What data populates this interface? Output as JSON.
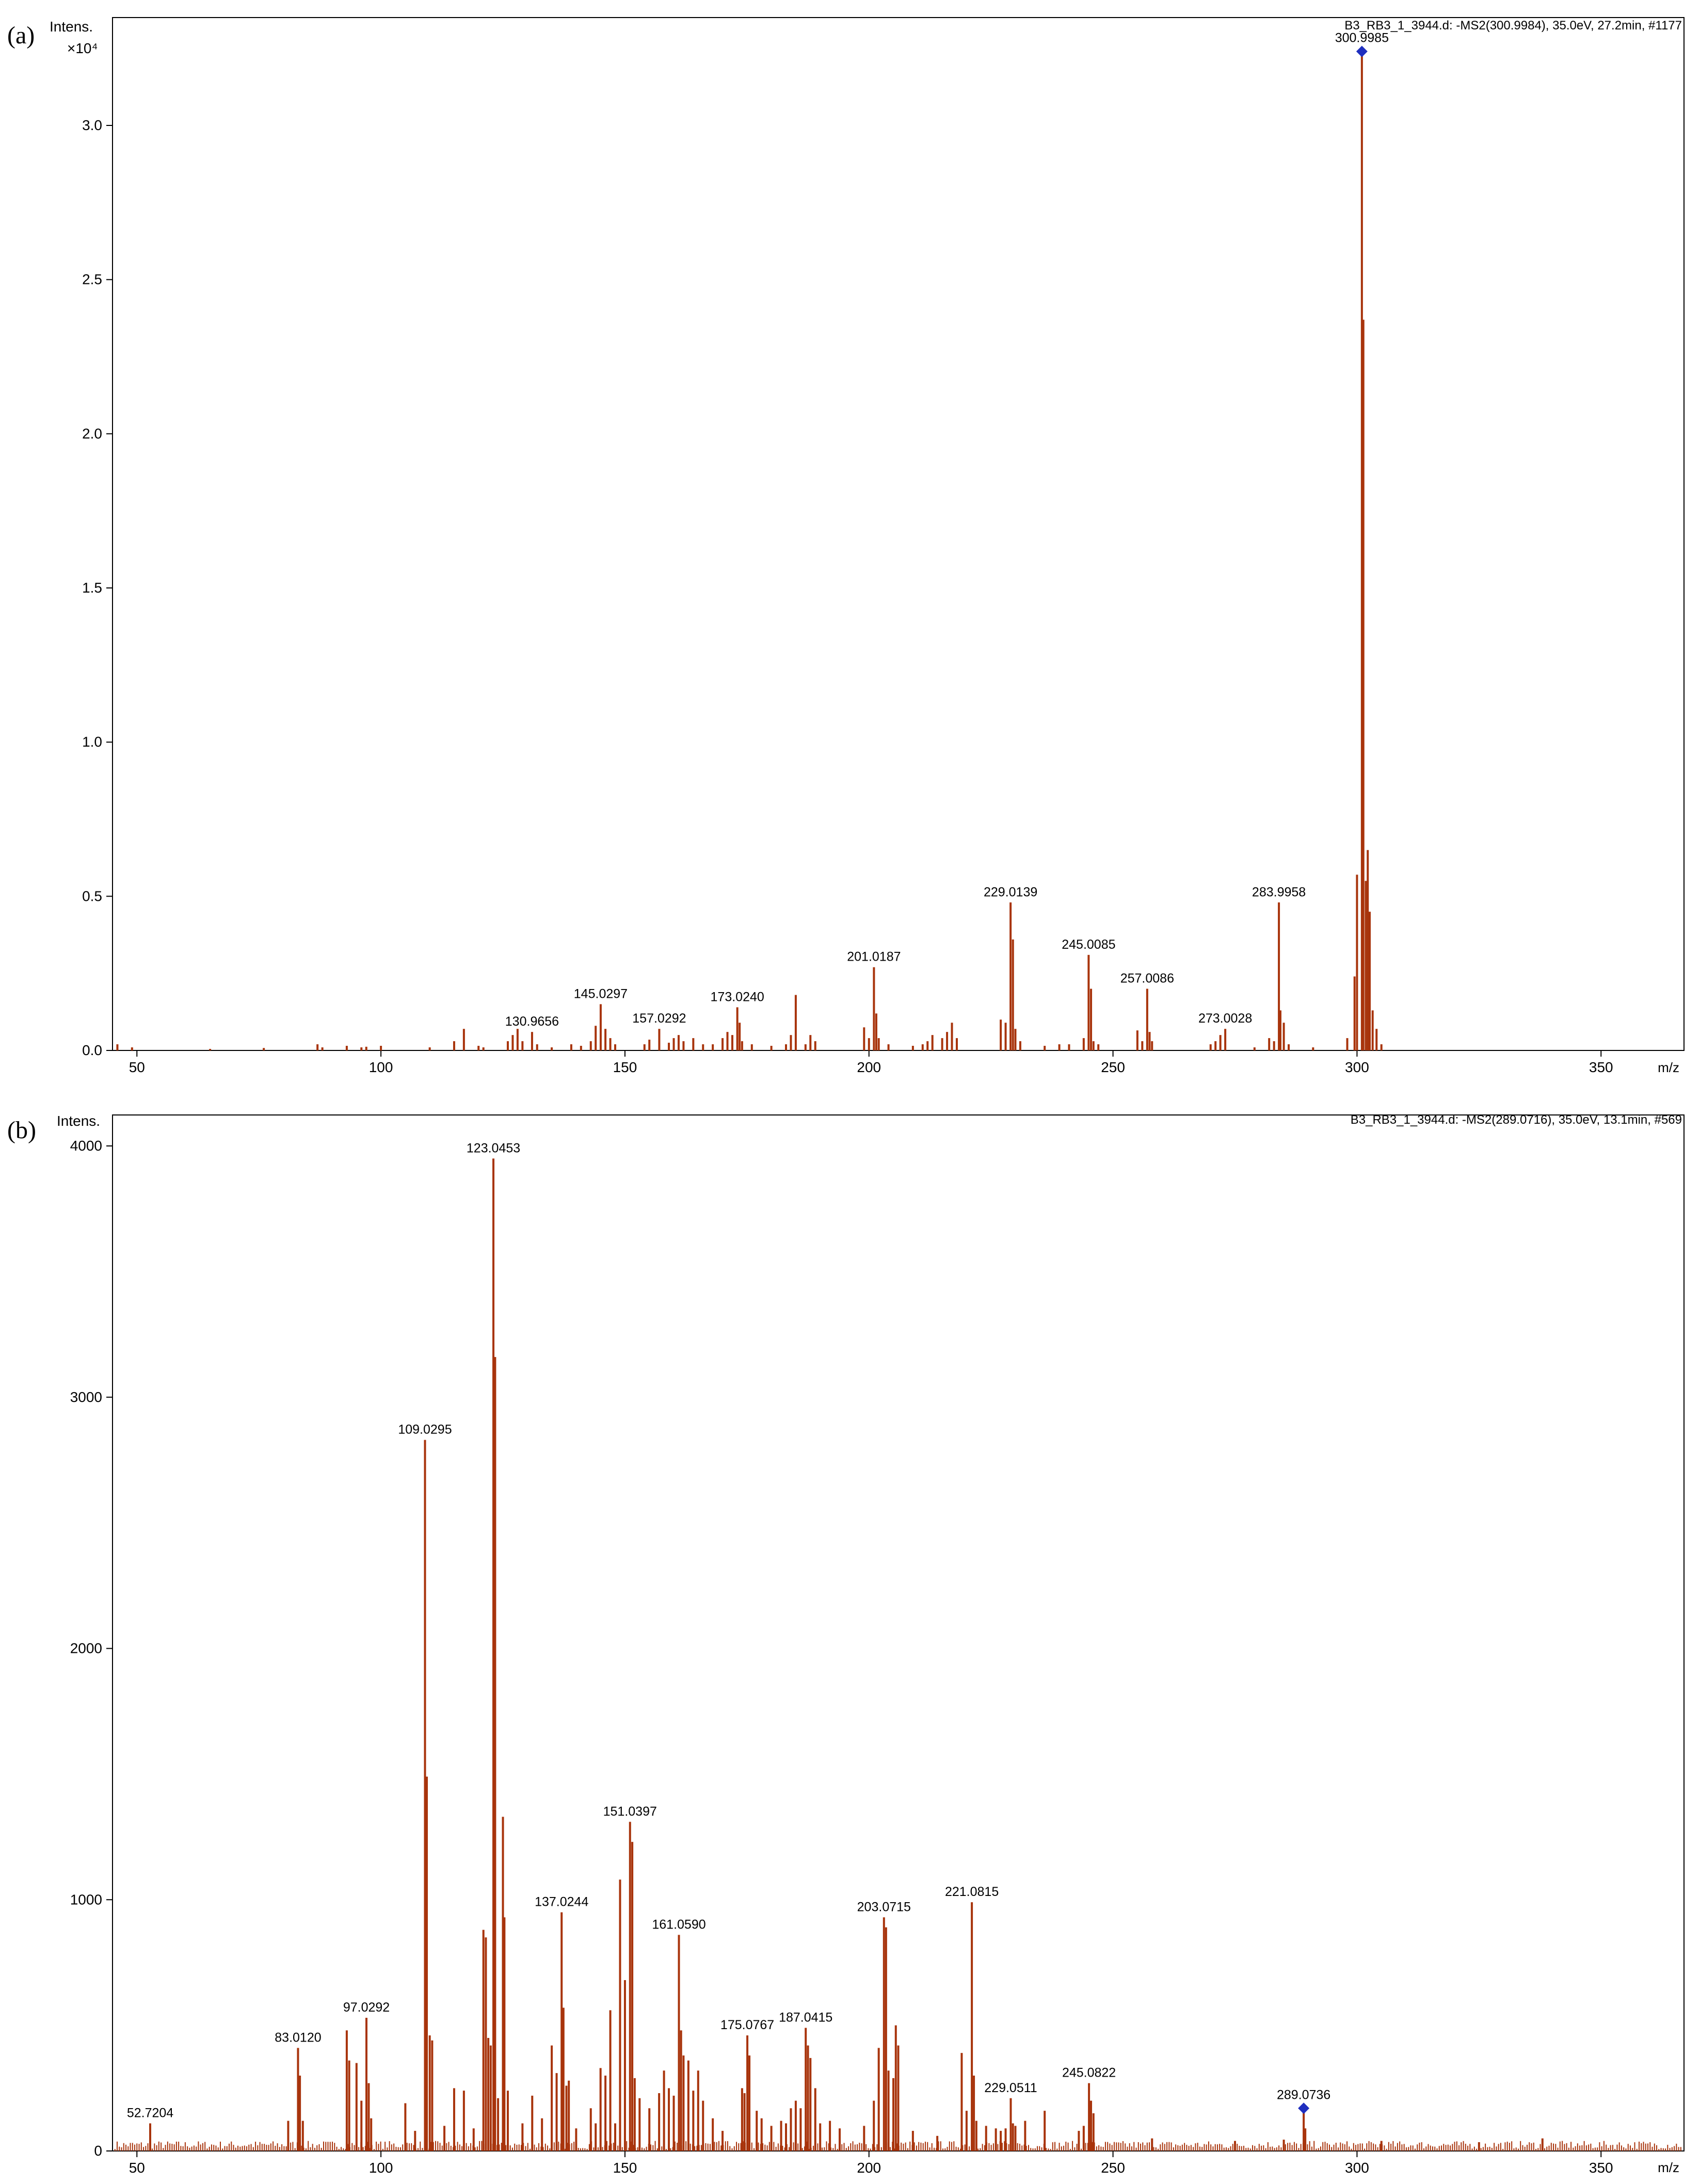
{
  "panels": [
    {
      "label": "(a)",
      "ylabel": "Intens.",
      "yscale": "×10⁴",
      "header": "B3_RB3_1_3944.d: -MS2(300.9984), 35.0eV, 27.2min, #1177",
      "xlabel": "m/z"
    },
    {
      "label": "(b)",
      "ylabel": "Intens.",
      "yscale": "",
      "header": "B3_RB3_1_3944.d: -MS2(289.0716), 35.0eV, 13.1min, #569",
      "xlabel": "m/z"
    }
  ],
  "chart_data": [
    {
      "type": "bar",
      "title": "B3_RB3_1_3944.d: -MS2(300.9984), 35.0eV, 27.2min, #1177",
      "xlabel": "m/z",
      "ylabel": "Intens. ×10⁴",
      "xlim": [
        45,
        367
      ],
      "ylim": [
        0,
        3.4
      ],
      "xticks": [
        50,
        100,
        150,
        200,
        250,
        300,
        350
      ],
      "yticks": [
        0.0,
        0.5,
        1.0,
        1.5,
        2.0,
        2.5,
        3.0
      ],
      "ytick_labels": [
        "0.0",
        "0.5",
        "1.0",
        "1.5",
        "2.0",
        "2.5",
        "3.0"
      ],
      "precursor": {
        "mz": 300.9985,
        "color": "#1f2fbf"
      },
      "peak_color": "#a8340c",
      "labeled_peaks": [
        {
          "mz": 130.9656,
          "intensity": 0.06,
          "label": "130.9656"
        },
        {
          "mz": 145.0297,
          "intensity": 0.15,
          "label": "145.0297"
        },
        {
          "mz": 157.0292,
          "intensity": 0.07,
          "label": "157.0292"
        },
        {
          "mz": 173.024,
          "intensity": 0.14,
          "label": "173.0240"
        },
        {
          "mz": 201.0187,
          "intensity": 0.27,
          "label": "201.0187"
        },
        {
          "mz": 229.0139,
          "intensity": 0.48,
          "label": "229.0139"
        },
        {
          "mz": 245.0085,
          "intensity": 0.31,
          "label": "245.0085"
        },
        {
          "mz": 257.0086,
          "intensity": 0.2,
          "label": "257.0086"
        },
        {
          "mz": 273.0028,
          "intensity": 0.07,
          "label": "273.0028"
        },
        {
          "mz": 283.9958,
          "intensity": 0.48,
          "label": "283.9958"
        },
        {
          "mz": 300.9985,
          "intensity": 3.24,
          "label": "300.9985"
        }
      ],
      "other_peaks": [
        [
          46,
          0.02
        ],
        [
          49,
          0.01
        ],
        [
          65,
          0.005
        ],
        [
          76,
          0.008
        ],
        [
          87,
          0.02
        ],
        [
          88,
          0.01
        ],
        [
          93,
          0.015
        ],
        [
          96,
          0.01
        ],
        [
          97,
          0.012
        ],
        [
          100,
          0.015
        ],
        [
          110,
          0.01
        ],
        [
          115,
          0.03
        ],
        [
          117,
          0.07
        ],
        [
          120,
          0.015
        ],
        [
          121,
          0.01
        ],
        [
          126,
          0.03
        ],
        [
          127,
          0.05
        ],
        [
          128,
          0.07
        ],
        [
          129,
          0.03
        ],
        [
          132,
          0.02
        ],
        [
          135,
          0.01
        ],
        [
          139,
          0.02
        ],
        [
          141,
          0.015
        ],
        [
          143,
          0.03
        ],
        [
          144,
          0.08
        ],
        [
          146,
          0.07
        ],
        [
          147,
          0.04
        ],
        [
          148,
          0.02
        ],
        [
          154,
          0.02
        ],
        [
          155,
          0.035
        ],
        [
          159,
          0.025
        ],
        [
          160,
          0.04
        ],
        [
          161,
          0.05
        ],
        [
          162,
          0.03
        ],
        [
          164,
          0.04
        ],
        [
          166,
          0.02
        ],
        [
          168,
          0.02
        ],
        [
          170,
          0.04
        ],
        [
          171,
          0.06
        ],
        [
          172,
          0.05
        ],
        [
          173.5,
          0.09
        ],
        [
          174,
          0.03
        ],
        [
          176,
          0.02
        ],
        [
          180,
          0.015
        ],
        [
          183,
          0.02
        ],
        [
          184,
          0.05
        ],
        [
          185,
          0.18
        ],
        [
          187,
          0.02
        ],
        [
          188,
          0.05
        ],
        [
          189,
          0.03
        ],
        [
          199,
          0.075
        ],
        [
          200,
          0.04
        ],
        [
          201.5,
          0.12
        ],
        [
          202,
          0.04
        ],
        [
          204,
          0.02
        ],
        [
          209,
          0.015
        ],
        [
          211,
          0.02
        ],
        [
          212,
          0.03
        ],
        [
          213,
          0.05
        ],
        [
          215,
          0.04
        ],
        [
          216,
          0.06
        ],
        [
          217,
          0.09
        ],
        [
          218,
          0.04
        ],
        [
          227,
          0.1
        ],
        [
          228,
          0.09
        ],
        [
          229.5,
          0.36
        ],
        [
          230,
          0.07
        ],
        [
          231,
          0.03
        ],
        [
          236,
          0.015
        ],
        [
          239,
          0.02
        ],
        [
          241,
          0.02
        ],
        [
          244,
          0.04
        ],
        [
          245.5,
          0.2
        ],
        [
          246,
          0.03
        ],
        [
          247,
          0.02
        ],
        [
          255,
          0.065
        ],
        [
          256,
          0.03
        ],
        [
          257.5,
          0.06
        ],
        [
          258,
          0.03
        ],
        [
          270,
          0.02
        ],
        [
          271,
          0.03
        ],
        [
          272,
          0.05
        ],
        [
          279,
          0.01
        ],
        [
          282,
          0.04
        ],
        [
          283,
          0.03
        ],
        [
          284.3,
          0.13
        ],
        [
          285,
          0.09
        ],
        [
          286,
          0.02
        ],
        [
          291,
          0.01
        ],
        [
          298,
          0.04
        ],
        [
          299.5,
          0.24
        ],
        [
          300,
          0.57
        ],
        [
          301.3,
          2.37
        ],
        [
          301.8,
          0.55
        ],
        [
          302.2,
          0.65
        ],
        [
          302.6,
          0.45
        ],
        [
          303.2,
          0.13
        ],
        [
          304,
          0.07
        ],
        [
          305,
          0.02
        ]
      ]
    },
    {
      "type": "bar",
      "title": "B3_RB3_1_3944.d: -MS2(289.0716), 35.0eV, 13.1min, #569",
      "xlabel": "m/z",
      "ylabel": "Intens.",
      "xlim": [
        45,
        367
      ],
      "ylim": [
        0,
        4000
      ],
      "xticks": [
        50,
        100,
        150,
        200,
        250,
        300,
        350
      ],
      "yticks": [
        0,
        1000,
        2000,
        3000,
        4000
      ],
      "ytick_labels": [
        "0",
        "1000",
        "2000",
        "3000",
        "4000"
      ],
      "precursor": {
        "mz": 289.0736,
        "color": "#1f2fbf"
      },
      "peak_color": "#a8340c",
      "labeled_peaks": [
        {
          "mz": 52.7204,
          "intensity": 110,
          "label": "52.7204"
        },
        {
          "mz": 83.012,
          "intensity": 410,
          "label": "83.0120"
        },
        {
          "mz": 97.0292,
          "intensity": 530,
          "label": "97.0292"
        },
        {
          "mz": 109.0295,
          "intensity": 2830,
          "label": "109.0295"
        },
        {
          "mz": 123.0453,
          "intensity": 3950,
          "label": "123.0453"
        },
        {
          "mz": 137.0244,
          "intensity": 950,
          "label": "137.0244"
        },
        {
          "mz": 151.0397,
          "intensity": 1310,
          "label": "151.0397"
        },
        {
          "mz": 161.059,
          "intensity": 860,
          "label": "161.0590"
        },
        {
          "mz": 175.0767,
          "intensity": 460,
          "label": "175.0767"
        },
        {
          "mz": 187.0415,
          "intensity": 490,
          "label": "187.0415"
        },
        {
          "mz": 203.0715,
          "intensity": 930,
          "label": "203.0715"
        },
        {
          "mz": 221.0815,
          "intensity": 990,
          "label": "221.0815"
        },
        {
          "mz": 229.0511,
          "intensity": 210,
          "label": "229.0511"
        },
        {
          "mz": 245.0822,
          "intensity": 270,
          "label": "245.0822"
        },
        {
          "mz": 289.0736,
          "intensity": 170,
          "label": "289.0736"
        }
      ],
      "other_peaks": [
        [
          81,
          120
        ],
        [
          83.4,
          300
        ],
        [
          84,
          120
        ],
        [
          93,
          480
        ],
        [
          93.5,
          360
        ],
        [
          95,
          350
        ],
        [
          96,
          200
        ],
        [
          97.5,
          270
        ],
        [
          98,
          130
        ],
        [
          105,
          190
        ],
        [
          107,
          80
        ],
        [
          109.4,
          1490
        ],
        [
          110,
          460
        ],
        [
          110.5,
          440
        ],
        [
          113,
          100
        ],
        [
          115,
          250
        ],
        [
          117,
          240
        ],
        [
          119,
          90
        ],
        [
          121,
          880
        ],
        [
          121.5,
          850
        ],
        [
          122,
          450
        ],
        [
          122.5,
          420
        ],
        [
          123.4,
          3160
        ],
        [
          124,
          210
        ],
        [
          125,
          1330
        ],
        [
          125.3,
          930
        ],
        [
          126,
          240
        ],
        [
          129,
          110
        ],
        [
          131,
          220
        ],
        [
          133,
          130
        ],
        [
          135,
          420
        ],
        [
          136,
          310
        ],
        [
          137.4,
          570
        ],
        [
          138,
          260
        ],
        [
          138.5,
          280
        ],
        [
          140,
          90
        ],
        [
          143,
          170
        ],
        [
          144,
          110
        ],
        [
          145,
          330
        ],
        [
          146,
          300
        ],
        [
          147,
          560
        ],
        [
          148,
          110
        ],
        [
          149,
          1080
        ],
        [
          150,
          680
        ],
        [
          151.5,
          1230
        ],
        [
          152,
          290
        ],
        [
          153,
          210
        ],
        [
          155,
          170
        ],
        [
          157,
          230
        ],
        [
          158,
          320
        ],
        [
          159,
          250
        ],
        [
          160,
          220
        ],
        [
          161.5,
          480
        ],
        [
          162,
          380
        ],
        [
          163,
          360
        ],
        [
          164,
          240
        ],
        [
          165,
          320
        ],
        [
          166,
          200
        ],
        [
          168,
          130
        ],
        [
          170,
          80
        ],
        [
          174,
          250
        ],
        [
          174.5,
          230
        ],
        [
          175.5,
          380
        ],
        [
          177,
          160
        ],
        [
          178,
          130
        ],
        [
          180,
          100
        ],
        [
          182,
          120
        ],
        [
          183,
          110
        ],
        [
          184,
          170
        ],
        [
          185,
          200
        ],
        [
          186,
          170
        ],
        [
          187.5,
          420
        ],
        [
          188,
          370
        ],
        [
          189,
          250
        ],
        [
          190,
          110
        ],
        [
          192,
          120
        ],
        [
          194,
          90
        ],
        [
          199,
          100
        ],
        [
          201,
          200
        ],
        [
          202,
          410
        ],
        [
          203.5,
          890
        ],
        [
          204,
          320
        ],
        [
          205,
          290
        ],
        [
          205.5,
          500
        ],
        [
          206,
          420
        ],
        [
          209,
          80
        ],
        [
          214,
          60
        ],
        [
          219,
          390
        ],
        [
          220,
          160
        ],
        [
          221.5,
          300
        ],
        [
          222,
          120
        ],
        [
          224,
          100
        ],
        [
          226,
          90
        ],
        [
          227,
          80
        ],
        [
          228,
          90
        ],
        [
          229.5,
          110
        ],
        [
          230,
          100
        ],
        [
          232,
          120
        ],
        [
          236,
          160
        ],
        [
          243,
          80
        ],
        [
          244,
          100
        ],
        [
          245.5,
          200
        ],
        [
          246,
          150
        ],
        [
          258,
          50
        ],
        [
          275,
          40
        ],
        [
          285,
          45
        ],
        [
          289.4,
          90
        ],
        [
          305,
          40
        ],
        [
          325,
          35
        ],
        [
          338,
          50
        ]
      ]
    }
  ]
}
